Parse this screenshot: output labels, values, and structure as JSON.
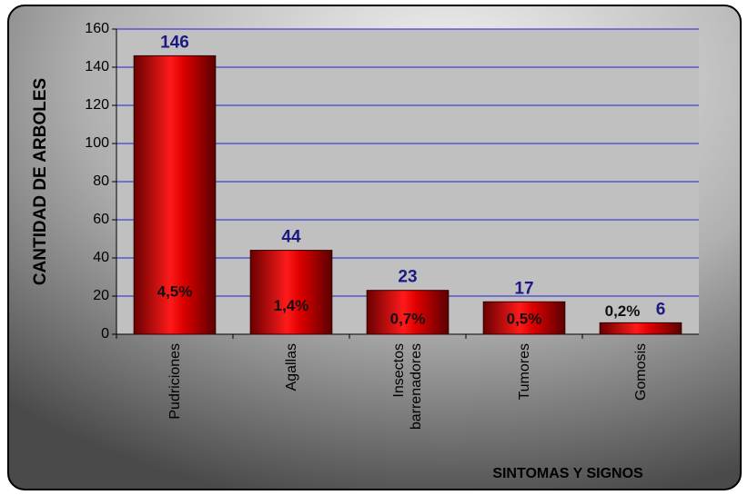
{
  "chart_data": {
    "type": "bar",
    "y_label": "CANTIDAD DE ARBOLES",
    "x_label": "SINTOMAS Y SIGNOS",
    "categories": [
      "Pudriciones",
      "Agallas",
      "Insectos barrenadores",
      "Tumores",
      "Gomosis"
    ],
    "values": [
      146,
      44,
      23,
      17,
      6
    ],
    "percent_labels": [
      "4,5%",
      "1,4%",
      "0,7%",
      "0,5%",
      "0,2%"
    ],
    "color": "#e00000",
    "ylim": [
      0,
      160
    ],
    "yticks": [
      0,
      20,
      40,
      60,
      80,
      100,
      120,
      140,
      160
    ],
    "grid": true
  }
}
